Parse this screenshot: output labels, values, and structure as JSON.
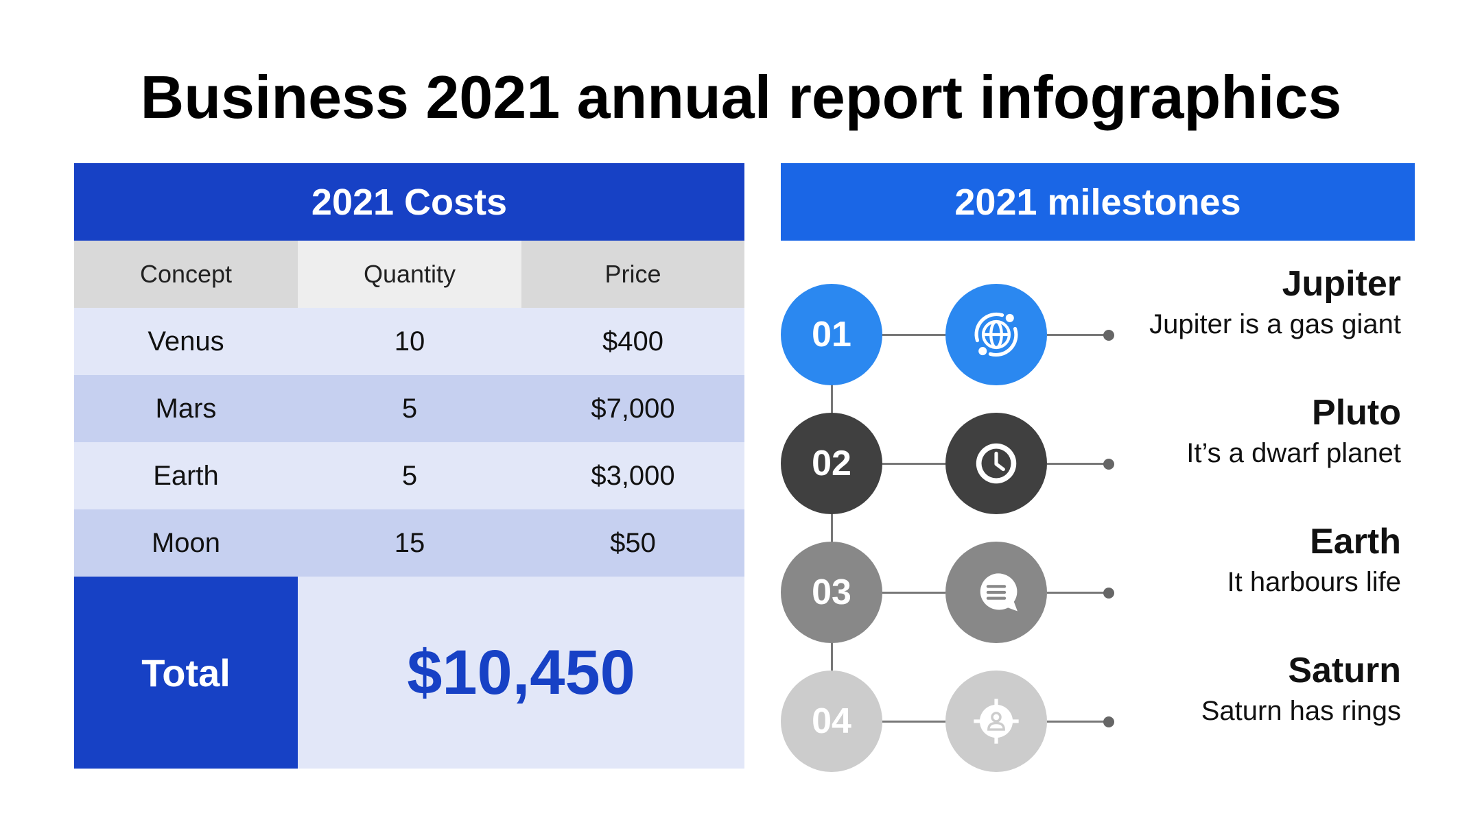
{
  "title": "Business 2021 annual report infographics",
  "costs": {
    "header": "2021 Costs",
    "columns": [
      "Concept",
      "Quantity",
      "Price"
    ],
    "rows": [
      {
        "concept": "Venus",
        "quantity": "10",
        "price": "$400"
      },
      {
        "concept": "Mars",
        "quantity": "5",
        "price": "$7,000"
      },
      {
        "concept": "Earth",
        "quantity": "5",
        "price": "$3,000"
      },
      {
        "concept": "Moon",
        "quantity": "15",
        "price": "$50"
      }
    ],
    "total_label": "Total",
    "total_value": "$10,450"
  },
  "milestones": {
    "header": "2021 milestones",
    "items": [
      {
        "number": "01",
        "name": "Jupiter",
        "description": "Jupiter is a gas giant",
        "icon": "globe-sync-icon",
        "color": "#2b88f0"
      },
      {
        "number": "02",
        "name": "Pluto",
        "description": "It’s a dwarf planet",
        "icon": "clock-icon",
        "color": "#404040"
      },
      {
        "number": "03",
        "name": "Earth",
        "description": "It harbours life",
        "icon": "chat-bubble-icon",
        "color": "#888888"
      },
      {
        "number": "04",
        "name": "Saturn",
        "description": "Saturn has rings",
        "icon": "user-target-icon",
        "color": "#cccccc"
      }
    ]
  },
  "colors": {
    "primary_blue": "#1741c5",
    "milestone_blue": "#1a66e6",
    "row_light": "#e2e7f8",
    "row_dark": "#c6d0f0"
  }
}
